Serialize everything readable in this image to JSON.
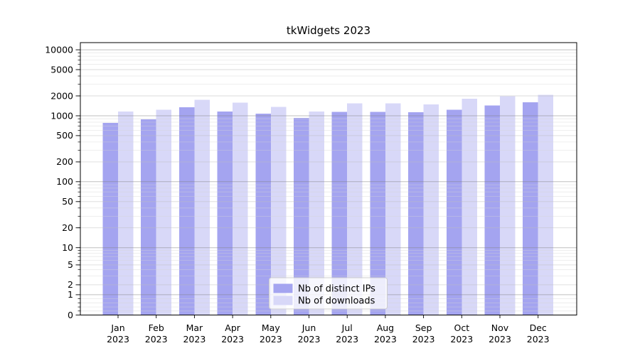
{
  "title": "tkWidgets 2023",
  "chart_data": {
    "type": "bar",
    "title": "tkWidgets 2023",
    "months": [
      "Jan",
      "Feb",
      "Mar",
      "Apr",
      "May",
      "Jun",
      "Jul",
      "Aug",
      "Sep",
      "Oct",
      "Nov",
      "Dec"
    ],
    "year_label": "2023",
    "categories": [
      "Jan 2023",
      "Feb 2023",
      "Mar 2023",
      "Apr 2023",
      "May 2023",
      "Jun 2023",
      "Jul 2023",
      "Aug 2023",
      "Sep 2023",
      "Oct 2023",
      "Nov 2023",
      "Dec 2023"
    ],
    "series": [
      {
        "name": "Nb of distinct IPs",
        "color": "#a4a4f0",
        "values": [
          780,
          880,
          1340,
          1160,
          1080,
          930,
          1150,
          1150,
          1130,
          1240,
          1440,
          1610
        ]
      },
      {
        "name": "Nb of downloads",
        "color": "#d8d8f8",
        "values": [
          1160,
          1230,
          1740,
          1580,
          1370,
          1160,
          1550,
          1550,
          1490,
          1810,
          1970,
          2070
        ]
      }
    ],
    "yscale": "symlog",
    "yticks": [
      10000,
      5000,
      2000,
      1000,
      500,
      200,
      100,
      50,
      20,
      10,
      5,
      2,
      1,
      0
    ],
    "ylim": [
      0,
      12800
    ],
    "grid": true,
    "legend_position": "lower center",
    "colors": {
      "major_grid": "#b3b3b3",
      "minor_grid": "#e4e4e4",
      "axis": "#000000",
      "legend_border": "#cccccc"
    }
  }
}
